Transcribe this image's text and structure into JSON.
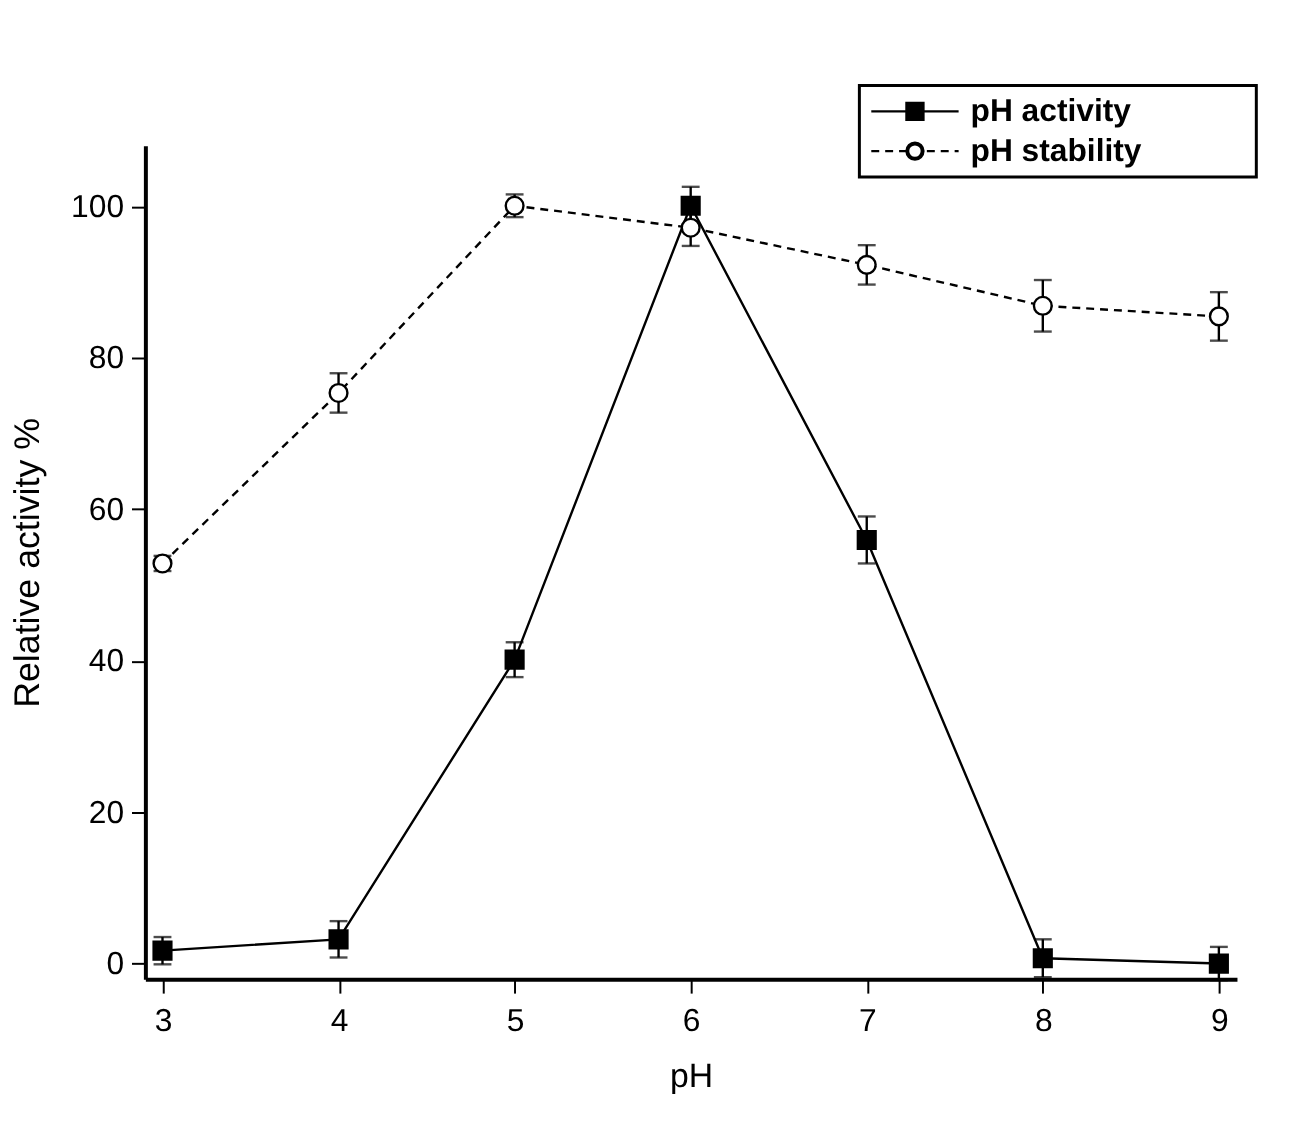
{
  "chart_data": {
    "type": "line",
    "xlabel": "pH",
    "ylabel": "Relative activity %",
    "x": [
      3,
      4,
      5,
      6,
      7,
      8,
      9
    ],
    "series": [
      {
        "name": "pH activity",
        "color": "#000000",
        "marker": "square",
        "line_style": "solid",
        "values": [
          1.7,
          3.2,
          40.1,
          100,
          55.9,
          0.7,
          0
        ],
        "errors": [
          1.8,
          2.4,
          2.3,
          2.5,
          3.1,
          2.5,
          2.2
        ]
      },
      {
        "name": "pH stability",
        "color": "#000000",
        "marker": "circle",
        "line_style": "dashed",
        "values": [
          52.8,
          75.3,
          100,
          97.1,
          92.2,
          86.8,
          85.4
        ],
        "errors": [
          1,
          2.6,
          1.5,
          2.4,
          2.6,
          3.4,
          3.2
        ]
      }
    ],
    "xlim": [
      2.9,
      9.1
    ],
    "xticks": [
      {
        "value": 3,
        "label": "3"
      },
      {
        "value": 4,
        "label": "4"
      },
      {
        "value": 5,
        "label": "5"
      },
      {
        "value": 6,
        "label": "6"
      },
      {
        "value": 7,
        "label": "7"
      },
      {
        "value": 8,
        "label": "8"
      },
      {
        "value": 9,
        "label": "9"
      }
    ],
    "ylim": [
      -2,
      108
    ],
    "yticks": [
      0,
      20,
      40,
      60,
      80,
      100
    ],
    "grid": false,
    "legend": "top right"
  }
}
